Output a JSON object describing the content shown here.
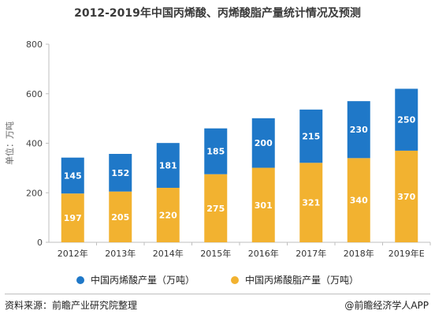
{
  "title": "2012-2019年中国丙烯酸、丙烯酸脂产量统计情况及预测",
  "source": "资料来源：前瞻产业研究院整理",
  "brand": "@前瞻经济学人APP",
  "colors": {
    "blue": "#1f78c8",
    "orange": "#f2b230",
    "axis": "#bfbfbf",
    "grid": "#e6e6e6"
  },
  "chart_data": {
    "type": "bar",
    "stacked": true,
    "categories": [
      "2012年",
      "2013年",
      "2014年",
      "2015年",
      "2016年",
      "2017年",
      "2018年",
      "2019年E"
    ],
    "series": [
      {
        "name": "中国丙烯酸脂产量（万吨）",
        "values": [
          197,
          205,
          220,
          275,
          301,
          321,
          340,
          370
        ],
        "color": "#f2b230"
      },
      {
        "name": "中国丙烯酸产量（万吨）",
        "values": [
          145,
          152,
          181,
          185,
          200,
          215,
          230,
          250
        ],
        "color": "#1f78c8"
      }
    ],
    "ylabel": "单位：万吨",
    "ylim": [
      0,
      800
    ],
    "yticks": [
      0,
      200,
      400,
      600,
      800
    ],
    "grid": false,
    "legend_position": "bottom"
  }
}
